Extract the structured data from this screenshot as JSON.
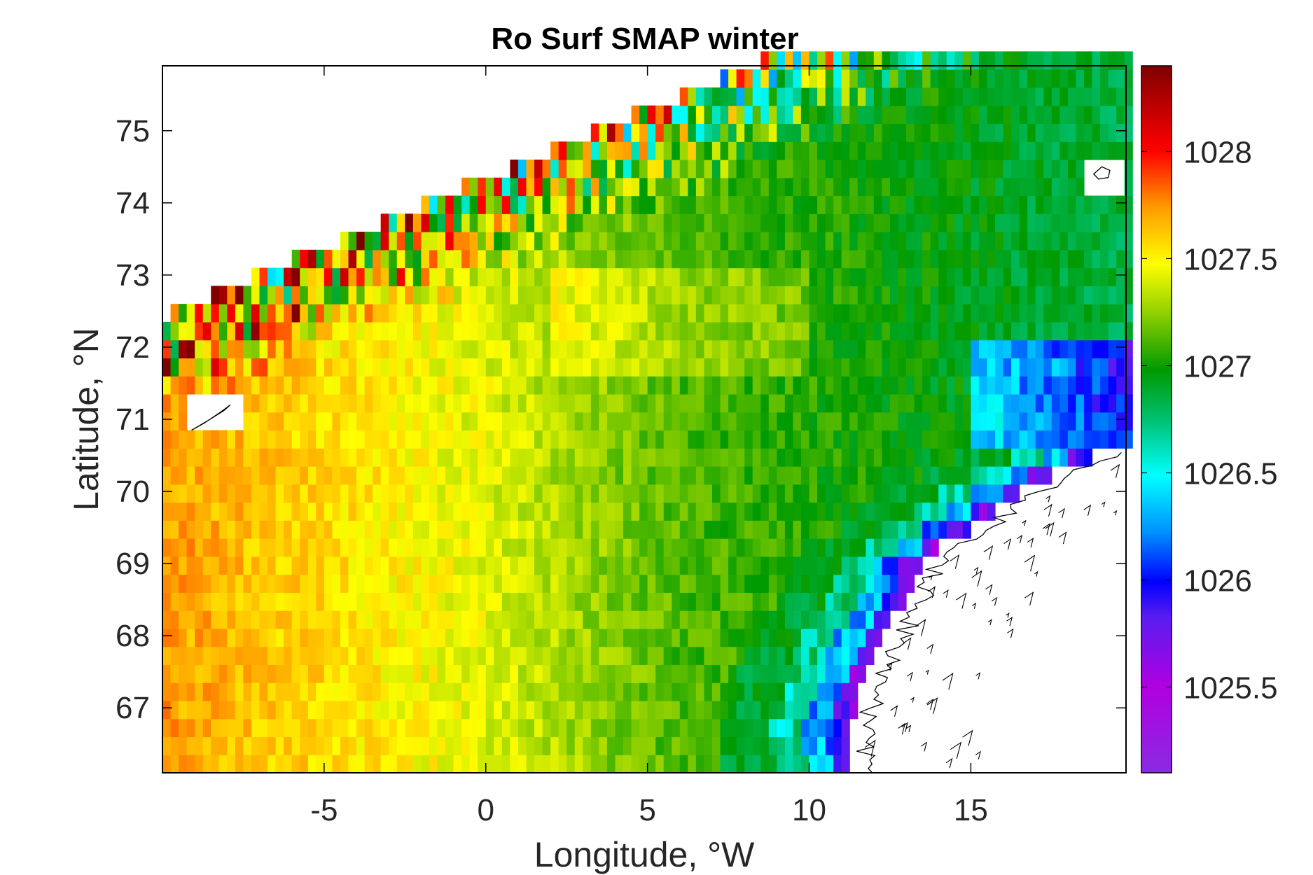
{
  "chart_data": {
    "type": "heatmap",
    "title": "Ro Surf SMAP winter",
    "xlabel": "Longitude, °W",
    "ylabel": "Latitude, °N",
    "xlim": [
      -10,
      19.8
    ],
    "ylim": [
      66.1,
      75.9
    ],
    "x_ticks": [
      -5,
      0,
      5,
      10,
      15
    ],
    "x_tick_labels": [
      "-5",
      "0",
      "5",
      "10",
      "15"
    ],
    "y_ticks": [
      67,
      68,
      69,
      70,
      71,
      72,
      73,
      74,
      75
    ],
    "y_tick_labels": [
      "67",
      "68",
      "69",
      "70",
      "71",
      "72",
      "73",
      "74",
      "75"
    ],
    "grid": "off",
    "colorbar": {
      "label": "",
      "limits": [
        1025.1,
        1028.4
      ],
      "ticks": [
        1025.5,
        1026,
        1026.5,
        1027,
        1027.5,
        1028
      ],
      "tick_labels": [
        "1025.5",
        "1026",
        "1026.5",
        "1027",
        "1027.5",
        "1028"
      ],
      "colormap": "jet-like (purple → blue → cyan → green → yellow → orange → red → dark red)"
    },
    "grid_resolution": {
      "dlon": 0.25,
      "dlat": 0.25
    },
    "field_description": "Winter surface potential density; ~1027.5–1027.9 west of 0°, ~1027.0 central, 1026.0–1026.6 along Norwegian coast, noisy near ice edge in the northwest",
    "land_masks": [
      "Jan Mayen (~-8.5°, 71°)",
      "Bear Island (~19°, 74.4°)",
      "Norway coast (lon > ~12°, lat < ~70.4°)"
    ]
  }
}
